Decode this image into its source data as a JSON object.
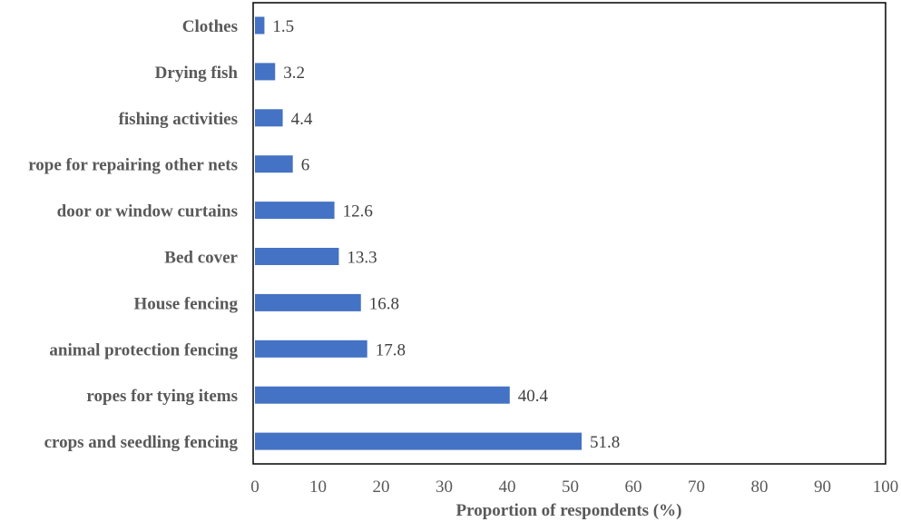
{
  "chart_data": {
    "type": "bar",
    "orientation": "horizontal",
    "categories": [
      "Clothes",
      "Drying fish",
      "fishing activities",
      "rope for repairing other nets",
      "door or window curtains",
      "Bed cover",
      "House fencing",
      "animal protection fencing ",
      "ropes for tying items",
      "crops and seedling fencing"
    ],
    "values": [
      1.5,
      3.2,
      4.4,
      6,
      12.6,
      13.3,
      16.8,
      17.8,
      40.4,
      51.8
    ],
    "value_labels": [
      "1.5",
      "3.2",
      "4.4",
      "6",
      "12.6",
      "13.3",
      "16.8",
      "17.8",
      "40.4",
      "51.8"
    ],
    "xlabel": "Proportion of respondents (%)",
    "ylabel": "",
    "xlim": [
      0,
      100
    ],
    "xticks": [
      0,
      10,
      20,
      30,
      40,
      50,
      60,
      70,
      80,
      90,
      100
    ],
    "grid": false,
    "legend": "none",
    "bar_color": "#4472C4"
  }
}
